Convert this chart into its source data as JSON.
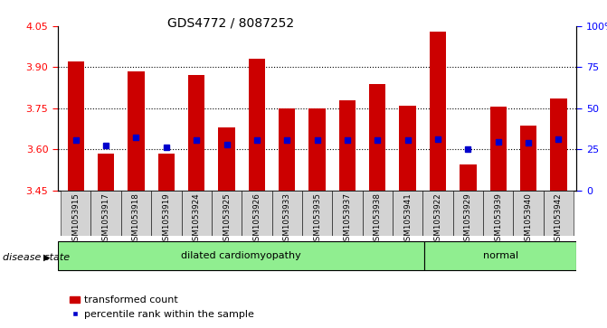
{
  "title": "GDS4772 / 8087252",
  "samples": [
    "GSM1053915",
    "GSM1053917",
    "GSM1053918",
    "GSM1053919",
    "GSM1053924",
    "GSM1053925",
    "GSM1053926",
    "GSM1053933",
    "GSM1053935",
    "GSM1053937",
    "GSM1053938",
    "GSM1053941",
    "GSM1053922",
    "GSM1053929",
    "GSM1053939",
    "GSM1053940",
    "GSM1053942"
  ],
  "bar_values": [
    3.92,
    3.585,
    3.885,
    3.583,
    3.87,
    3.68,
    3.93,
    3.75,
    3.75,
    3.78,
    3.84,
    3.76,
    4.03,
    3.545,
    3.755,
    3.685,
    3.785
  ],
  "percentile_values": [
    3.635,
    3.615,
    3.645,
    3.608,
    3.635,
    3.618,
    3.635,
    3.635,
    3.632,
    3.632,
    3.635,
    3.632,
    3.638,
    3.6,
    3.628,
    3.625,
    3.638
  ],
  "group_labels": [
    "dilated cardiomyopathy",
    "normal"
  ],
  "group_counts": [
    12,
    5
  ],
  "ymin": 3.45,
  "ymax": 4.05,
  "yticks_left": [
    3.45,
    3.6,
    3.75,
    3.9,
    4.05
  ],
  "yticks_right": [
    0,
    25,
    50,
    75,
    100
  ],
  "bar_color": "#cc0000",
  "dot_color": "#0000cc",
  "group_color": "#90ee90",
  "tick_bg_color": "#d3d3d3",
  "legend_items": [
    "transformed count",
    "percentile rank within the sample"
  ],
  "disease_state_label": "disease state",
  "grid_vals": [
    3.6,
    3.75,
    3.9
  ]
}
